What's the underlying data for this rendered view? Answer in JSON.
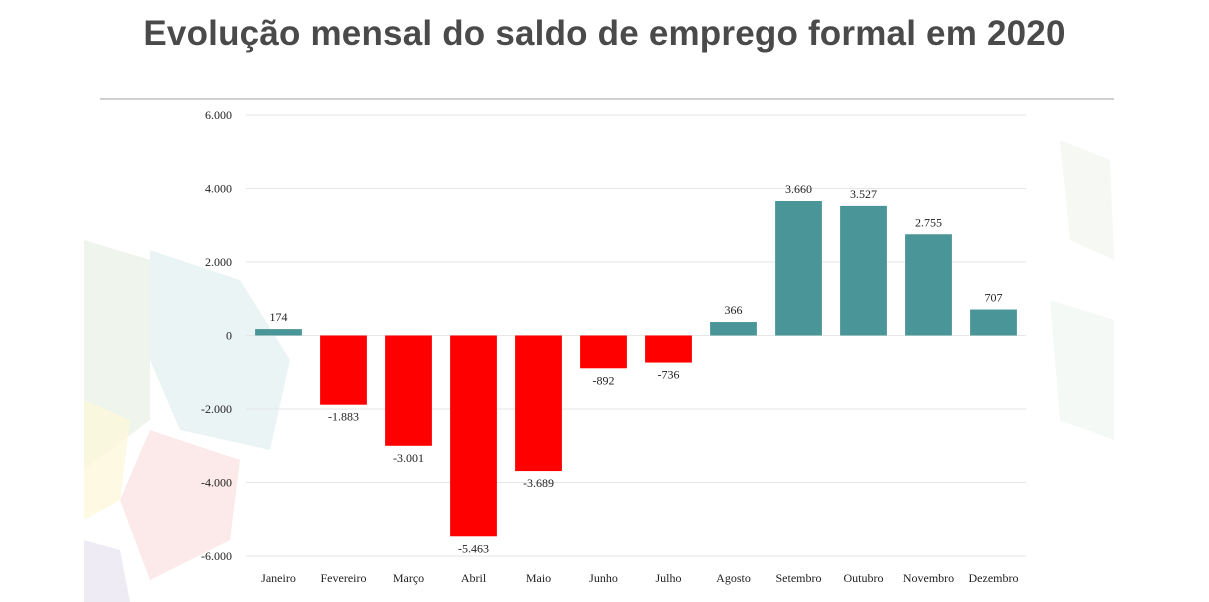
{
  "header": {
    "title": "Evolução mensal do saldo de emprego formal em 2020"
  },
  "colors": {
    "positive": "#4a9598",
    "negative": "#ff0000",
    "gridline": "#e6e6e6",
    "title_rule": "#d0d0d0",
    "decor_shapes": [
      "#e8f1e4",
      "#e2f0f1",
      "#fbe3e3",
      "#fdf7dc",
      "#ebe6f3"
    ]
  },
  "chart_data": {
    "type": "bar",
    "title": "Evolução mensal do saldo de emprego formal em 2020",
    "xlabel": "",
    "ylabel": "",
    "categories": [
      "Janeiro",
      "Fevereiro",
      "Março",
      "Abril",
      "Maio",
      "Junho",
      "Julho",
      "Agosto",
      "Setembro",
      "Outubro",
      "Novembro",
      "Dezembro"
    ],
    "values": [
      174,
      -1883,
      -3001,
      -5463,
      -3689,
      -892,
      -736,
      366,
      3660,
      3527,
      2755,
      707
    ],
    "value_labels": [
      "174",
      "-1.883",
      "-3.001",
      "-5.463",
      "-3.689",
      "-892",
      "-736",
      "366",
      "3.660",
      "3.527",
      "2.755",
      "707"
    ],
    "ylim": [
      -6000,
      6000
    ],
    "yticks": [
      6000,
      4000,
      2000,
      0,
      -2000,
      -4000,
      -6000
    ],
    "ytick_labels": [
      "6.000",
      "4.000",
      "2.000",
      "0",
      "-2.000",
      "-4.000",
      "-6.000"
    ],
    "grid": true,
    "legend": "none"
  }
}
